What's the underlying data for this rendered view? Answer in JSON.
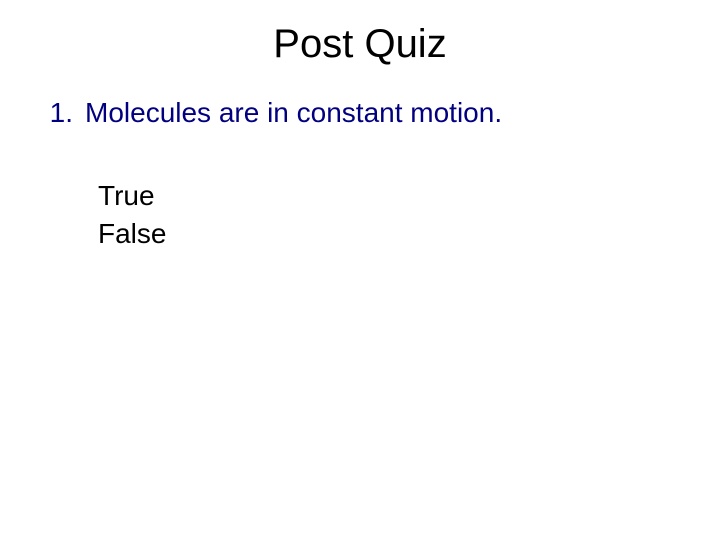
{
  "slide": {
    "title": "Post Quiz",
    "title_color": "#000000",
    "title_fontsize": 40,
    "question_number": "1.",
    "question_text": "Molecules are in constant motion.",
    "question_color": "#000080",
    "question_fontsize": 28,
    "options": [
      "True",
      "False"
    ],
    "option_color": "#000000",
    "option_fontsize": 28,
    "background_color": "#ffffff"
  }
}
